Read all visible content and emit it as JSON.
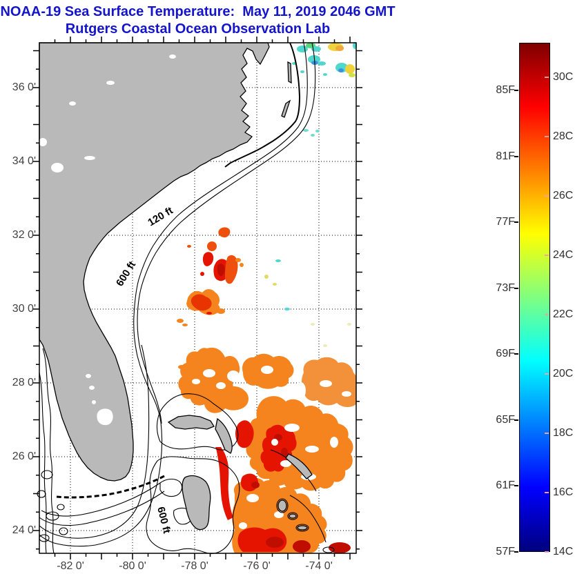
{
  "header": {
    "title": "NOAA-19 Sea Surface Temperature:  May 11, 2019 2046 GMT",
    "subtitle": "Rutgers Coastal Ocean Observation Lab",
    "title_color": "#1414cc"
  },
  "map": {
    "x_tick_labels": [
      "-82 0'",
      "-80 0'",
      "-78 0'",
      "-76 0'",
      "-74 0'"
    ],
    "y_tick_labels": [
      "36 0'",
      "34 0'",
      "32 0'",
      "30 0'",
      "28 0'",
      "26 0'",
      "24 0'"
    ],
    "contour_labels": {
      "shelf_120ft": "120 ft",
      "shelf_600ft": "600 ft",
      "bahama_600ft": "600 ft"
    },
    "land_color": "#b9b9b9",
    "ocean_no_data_color": "#ffffff"
  },
  "colorbar": {
    "fahrenheit_labels": [
      "85F",
      "81F",
      "77F",
      "73F",
      "69F",
      "65F",
      "61F",
      "57F"
    ],
    "celsius_labels": [
      "30C",
      "28C",
      "26C",
      "24C",
      "22C",
      "20C",
      "18C",
      "16C",
      "14C"
    ],
    "scale_min_c": 14,
    "scale_max_c": 31.2,
    "palette": "jet"
  }
}
